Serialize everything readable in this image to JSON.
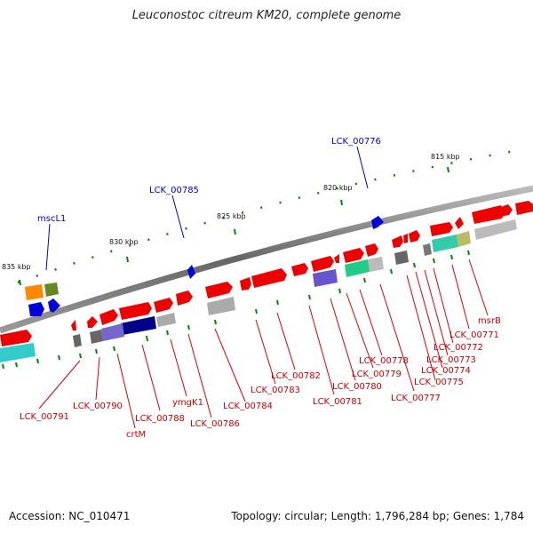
{
  "title": "Leuconostoc citreum KM20, complete genome",
  "footer": {
    "accession": "Accession: NC_010471",
    "summary": "Topology: circular; Length: 1,796,284 bp; Genes: 1,784"
  },
  "colors": {
    "forward_gene": "#ee0000",
    "rna_gene": "#0000dd",
    "gene_label": "#cc0000",
    "rna_label": "#0000cc",
    "tick": "#008800",
    "backbone": "#777777"
  },
  "ruler": [
    {
      "label": "815 kbp"
    },
    {
      "label": "820 kbp"
    },
    {
      "label": "825 kbp"
    },
    {
      "label": "830 kbp"
    },
    {
      "label": "835 kbp"
    }
  ],
  "gene_labels": [
    "msrB",
    "LCK_00771",
    "LCK_00772",
    "LCK_00773",
    "LCK_00774",
    "LCK_00775",
    "LCK_00777",
    "LCK_00778",
    "LCK_00779",
    "LCK_00780",
    "LCK_00781",
    "LCK_00782",
    "LCK_00783",
    "LCK_00784",
    "LCK_00786",
    "ymgK1",
    "LCK_00788",
    "crtM",
    "LCK_00790",
    "LCK_00791"
  ],
  "rna_labels": [
    "LCK_00776",
    "LCK_00785",
    "mscL1"
  ]
}
